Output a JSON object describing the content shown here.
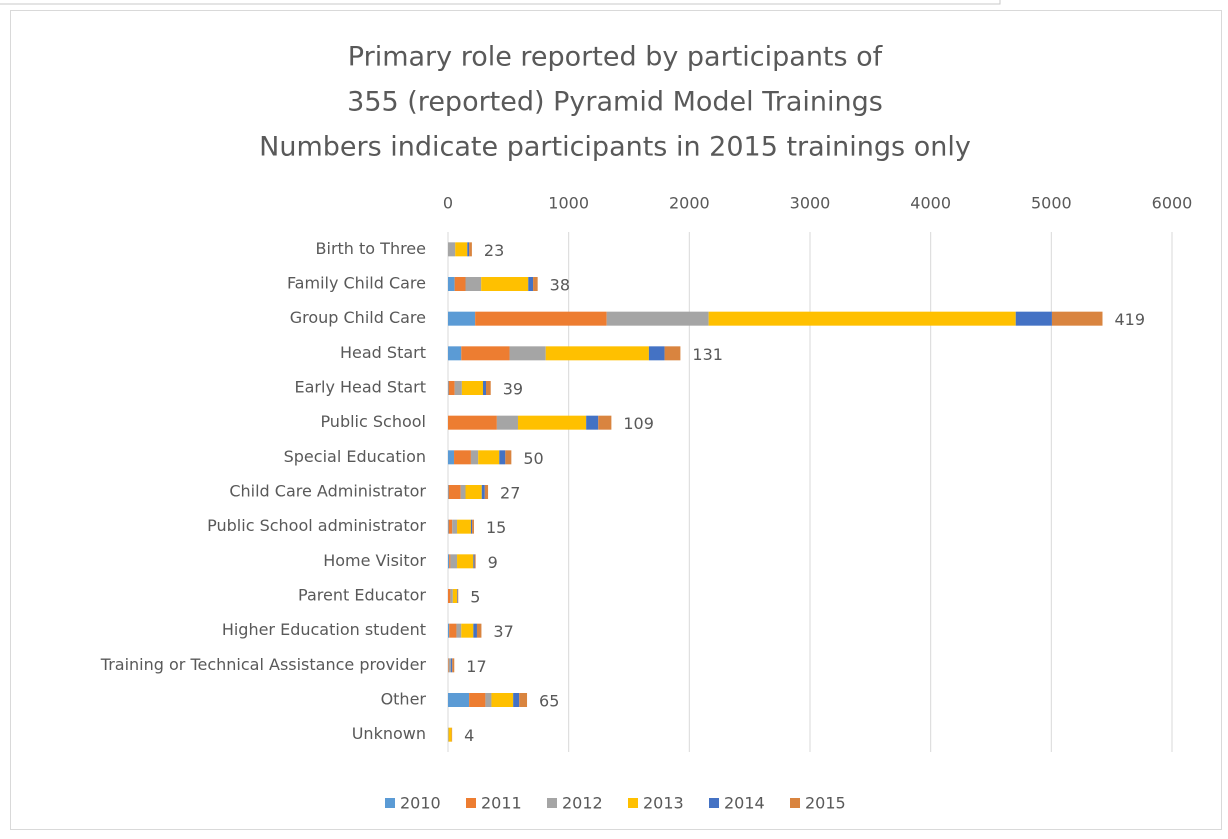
{
  "chart_data": {
    "type": "stacked_barh",
    "title": [
      "Primary role reported by participants of",
      "355 (reported) Pyramid Model Trainings",
      "Numbers indicate participants in 2015 trainings only"
    ],
    "categories": [
      "Birth to Three",
      "Family Child Care",
      "Group Child Care",
      "Head Start",
      "Early Head Start",
      "Public School",
      "Special Education",
      "Child Care Administrator",
      "Public School administrator",
      "Home Visitor",
      "Parent Educator",
      "Higher Education student",
      "Training or Technical Assistance provider",
      "Other",
      "Unknown"
    ],
    "series": [
      {
        "name": "2010",
        "color": "#5b9bd5",
        "values": [
          0,
          55,
          225,
          110,
          5,
          0,
          50,
          5,
          5,
          10,
          0,
          10,
          0,
          175,
          0
        ]
      },
      {
        "name": "2011",
        "color": "#ed7d31",
        "values": [
          0,
          90,
          1090,
          400,
          50,
          405,
          140,
          100,
          30,
          10,
          20,
          60,
          5,
          135,
          0
        ]
      },
      {
        "name": "2012",
        "color": "#a5a5a5",
        "values": [
          60,
          130,
          845,
          300,
          60,
          175,
          60,
          40,
          40,
          55,
          20,
          40,
          20,
          50,
          5
        ]
      },
      {
        "name": "2013",
        "color": "#ffc000",
        "values": [
          100,
          390,
          2545,
          855,
          175,
          565,
          175,
          135,
          115,
          135,
          35,
          100,
          0,
          180,
          25
        ]
      },
      {
        "name": "2014",
        "color": "#4472c4",
        "values": [
          15,
          40,
          300,
          130,
          25,
          100,
          50,
          25,
          10,
          10,
          5,
          30,
          10,
          50,
          0
        ]
      },
      {
        "name": "2015",
        "color": "#d9843f",
        "values": [
          23,
          38,
          419,
          131,
          39,
          109,
          50,
          27,
          15,
          9,
          5,
          37,
          17,
          65,
          4
        ]
      }
    ],
    "xlim": [
      0,
      6000
    ],
    "xticks": [
      0,
      1000,
      2000,
      3000,
      4000,
      5000,
      6000
    ],
    "grid": true,
    "legend": "bottom"
  }
}
